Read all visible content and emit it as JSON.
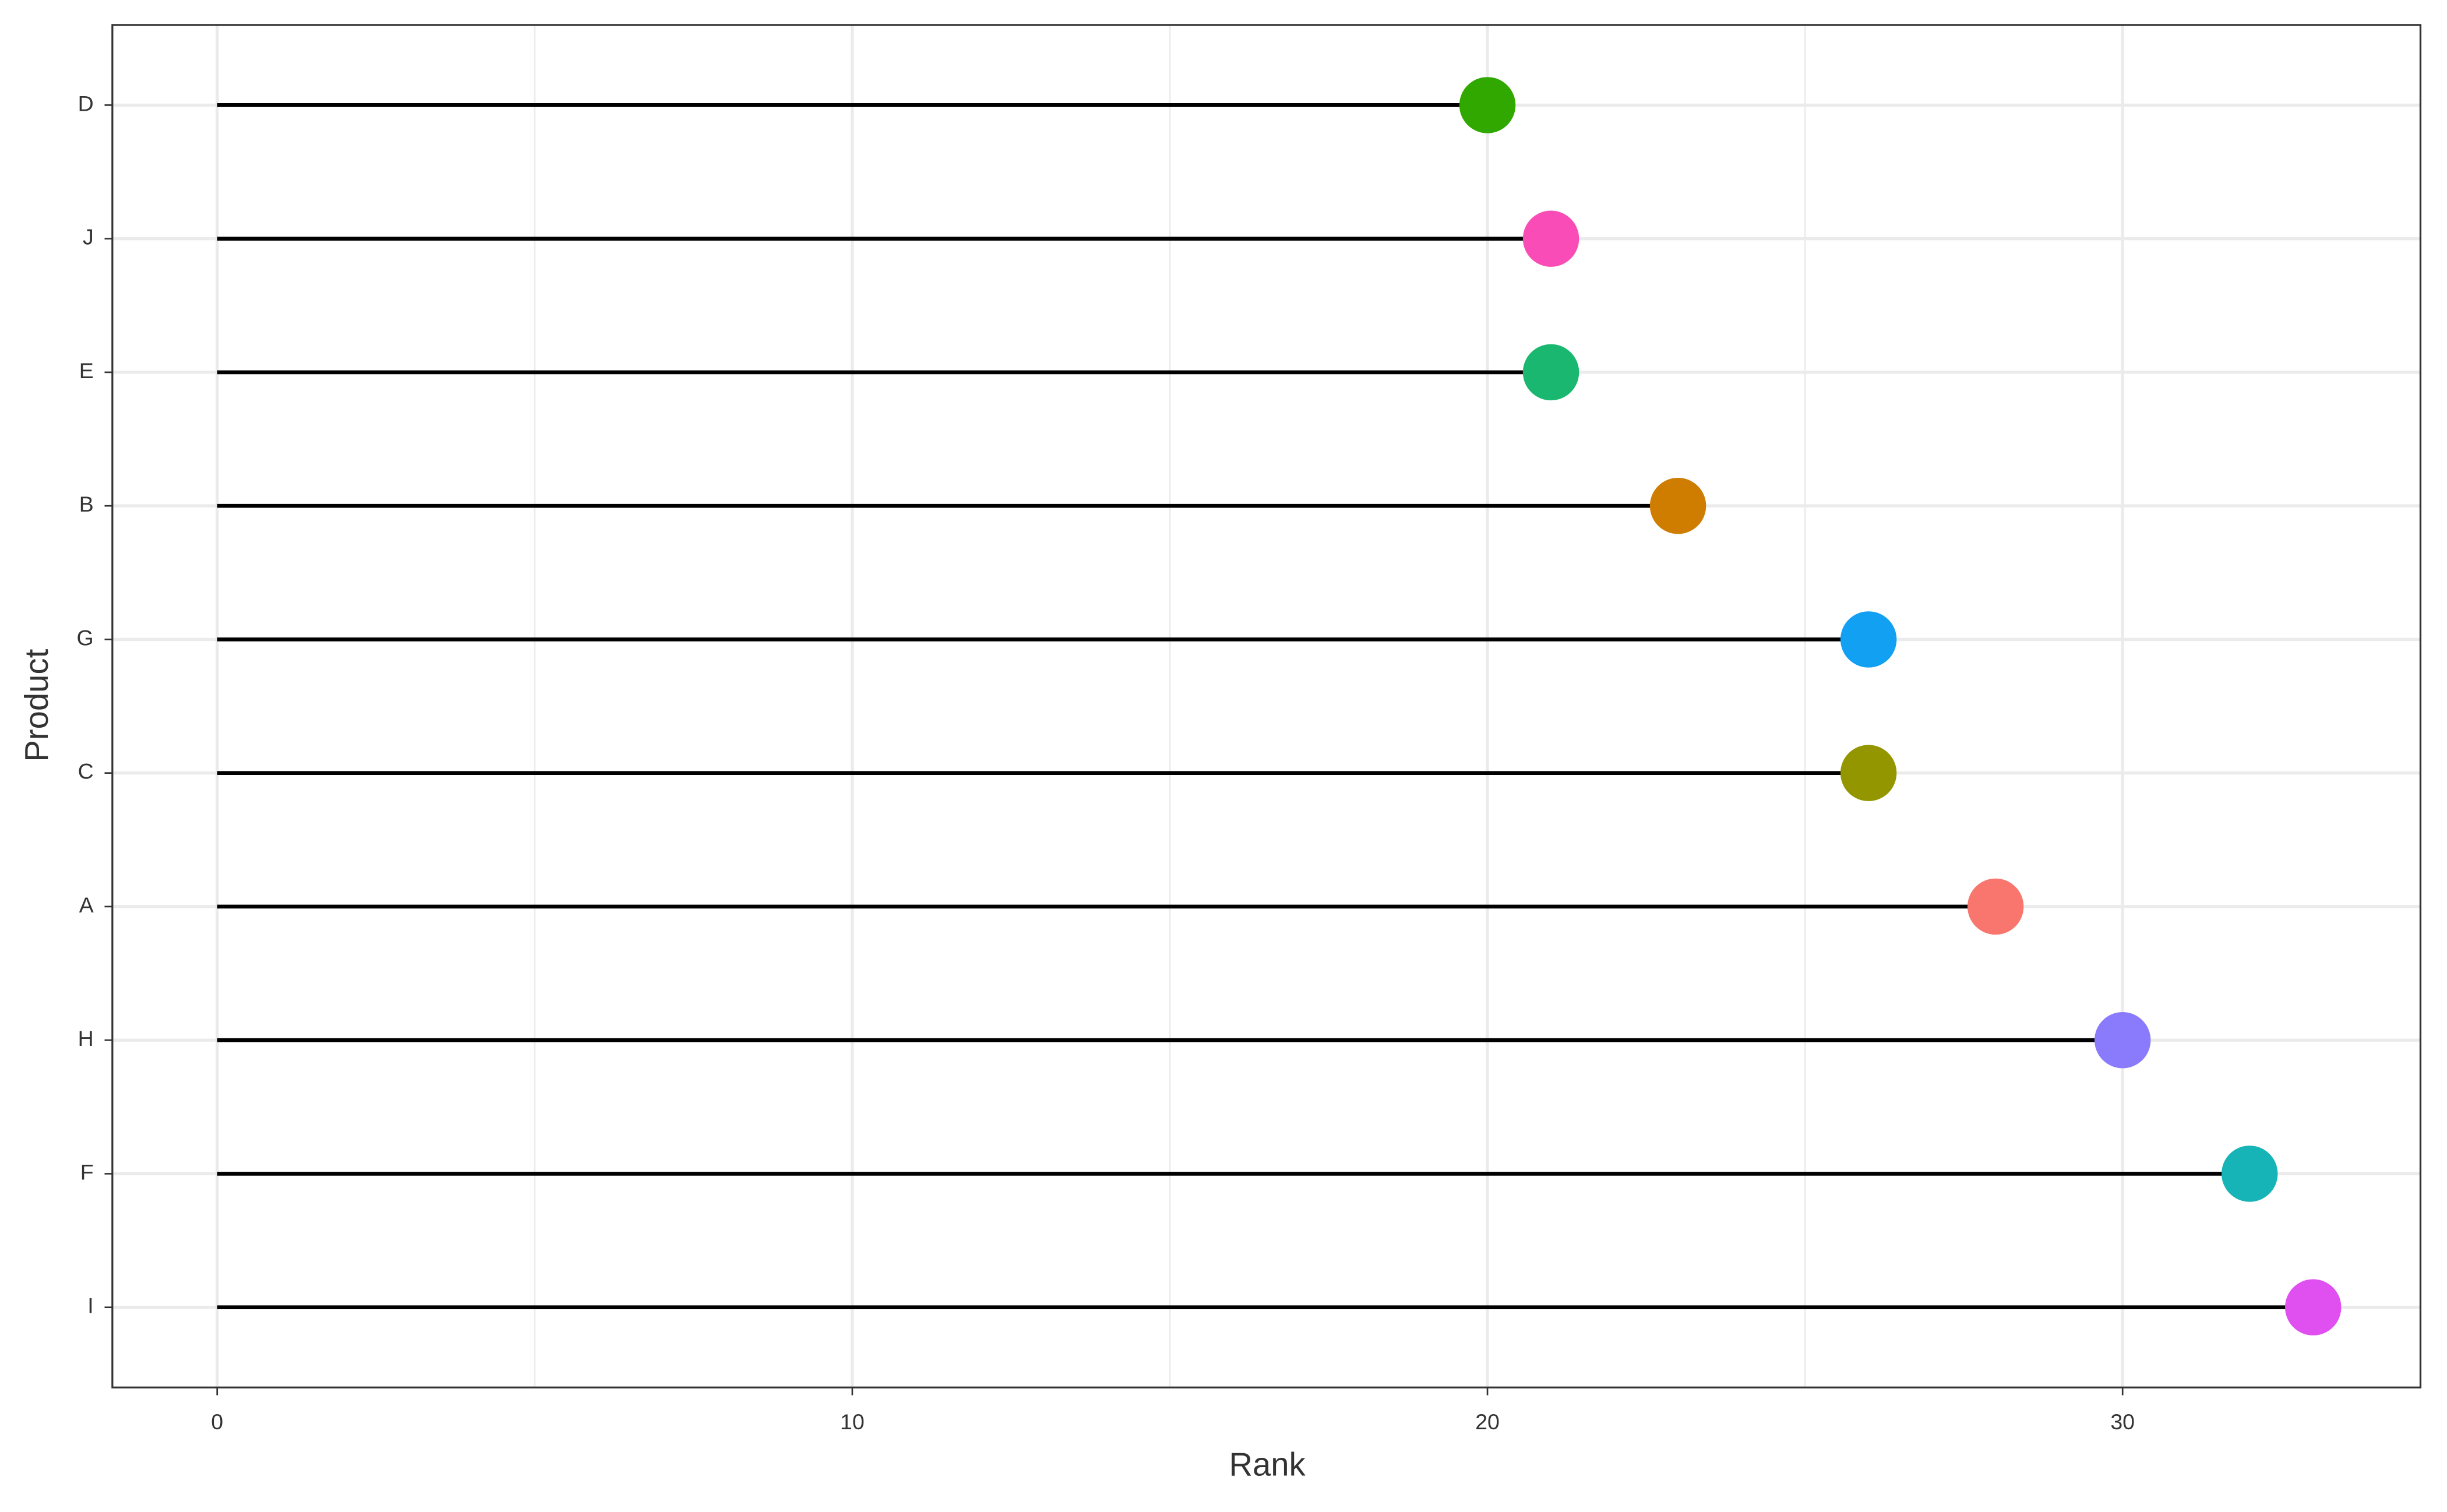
{
  "chart_data": {
    "type": "lollipop",
    "orientation": "horizontal",
    "x_label": "Rank",
    "y_label": "Product",
    "categories": [
      "D",
      "J",
      "E",
      "B",
      "G",
      "C",
      "A",
      "H",
      "F",
      "I"
    ],
    "values": [
      20,
      21,
      21,
      23,
      26,
      26,
      28,
      30,
      32,
      33
    ],
    "colors": [
      "#31a800",
      "#fa4cb6",
      "#19b770",
      "#ce7d00",
      "#12a0f3",
      "#949600",
      "#f8766d",
      "#8a7bfc",
      "#16b3b7",
      "#e04ff0"
    ],
    "stem_color": "#000000",
    "xlim": [
      -1.65,
      34.69
    ],
    "xticks": [
      0,
      10,
      20,
      30
    ],
    "grid": true
  }
}
